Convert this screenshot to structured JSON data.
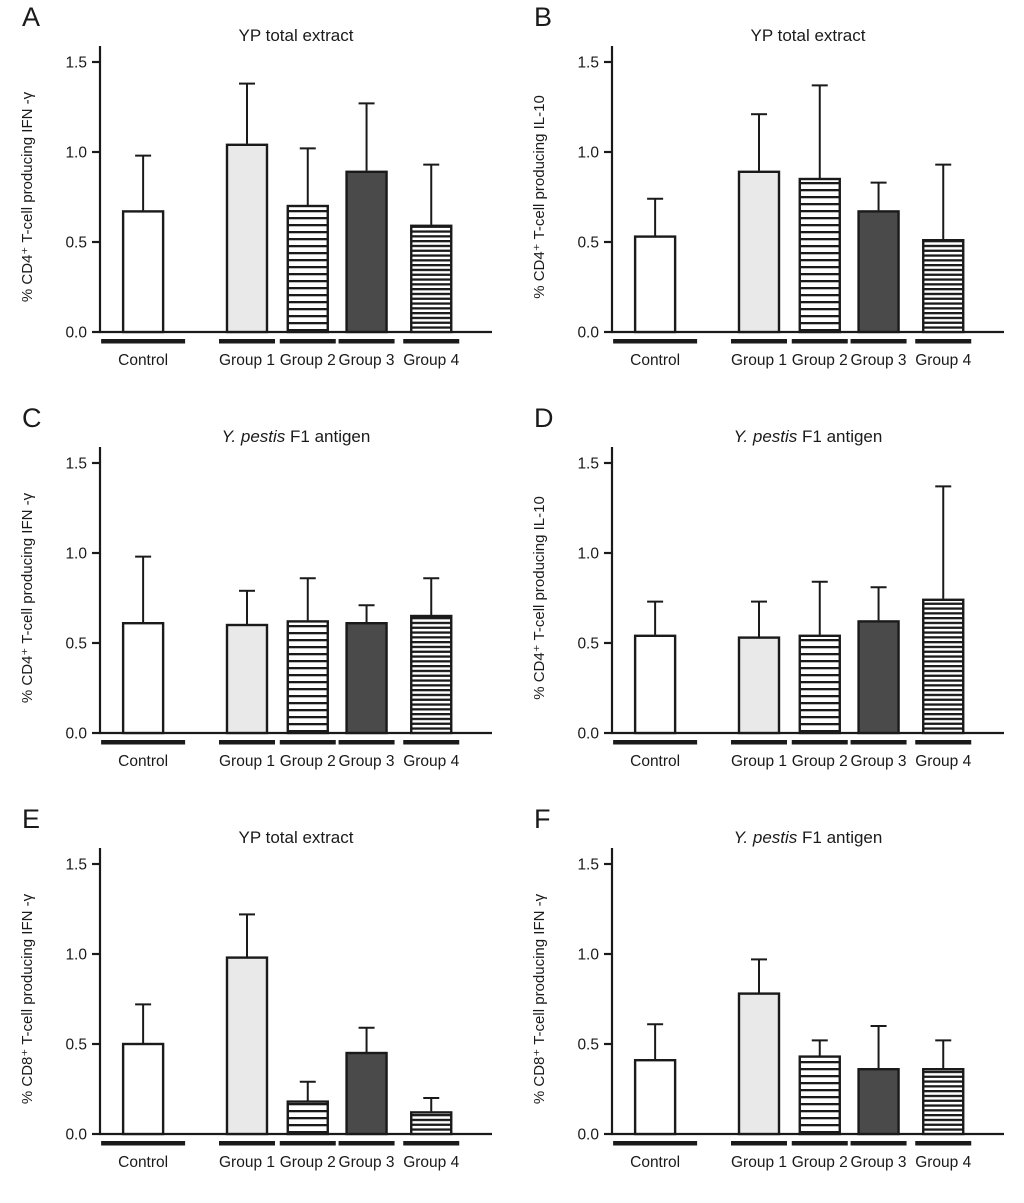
{
  "figure": {
    "bar_styles": [
      "white",
      "light-gray",
      "h-stripe",
      "dark-gray",
      "h-stripe-dense"
    ],
    "colors": {
      "axis": "#1a1a1a",
      "light_gray": "#e9e9e9",
      "dark_gray": "#4a4a4a",
      "stripe_ink": "#1a1a1a",
      "background": "#ffffff"
    }
  },
  "chart_data": [
    {
      "panel": "A",
      "type": "bar",
      "title": "YP total extract",
      "title_italic": "",
      "title_rest": "YP total extract",
      "ylabel": "% CD4⁺ T-cell producing IFN -γ",
      "categories": [
        "Control",
        "Group 1",
        "Group 2",
        "Group 3",
        "Group 4"
      ],
      "values": [
        0.67,
        1.04,
        0.7,
        0.89,
        0.59
      ],
      "errors": [
        0.31,
        0.34,
        0.32,
        0.38,
        0.34
      ],
      "yticks": [
        0,
        0.5,
        1,
        1.5
      ],
      "ylim": [
        0,
        1.5
      ],
      "grid": false,
      "legend": "none"
    },
    {
      "panel": "B",
      "type": "bar",
      "title": "YP total extract",
      "title_italic": "",
      "title_rest": "YP total extract",
      "ylabel": "% CD4⁺ T-cell producing IL-10",
      "categories": [
        "Control",
        "Group 1",
        "Group 2",
        "Group 3",
        "Group 4"
      ],
      "values": [
        0.53,
        0.89,
        0.85,
        0.67,
        0.51
      ],
      "errors": [
        0.21,
        0.32,
        0.52,
        0.16,
        0.42
      ],
      "yticks": [
        0,
        0.5,
        1,
        1.5
      ],
      "ylim": [
        0,
        1.5
      ],
      "grid": false,
      "legend": "none"
    },
    {
      "panel": "C",
      "type": "bar",
      "title": "Y. pestis F1 antigen",
      "title_italic": "Y. pestis",
      "title_rest": " F1 antigen",
      "ylabel": "% CD4⁺ T-cell producing IFN -γ",
      "categories": [
        "Control",
        "Group 1",
        "Group 2",
        "Group 3",
        "Group 4"
      ],
      "values": [
        0.61,
        0.6,
        0.62,
        0.61,
        0.65
      ],
      "errors": [
        0.37,
        0.19,
        0.24,
        0.1,
        0.21
      ],
      "yticks": [
        0,
        0.5,
        1,
        1.5
      ],
      "ylim": [
        0,
        1.5
      ],
      "grid": false,
      "legend": "none"
    },
    {
      "panel": "D",
      "type": "bar",
      "title": "Y. pestis F1 antigen",
      "title_italic": "Y. pestis",
      "title_rest": " F1 antigen",
      "ylabel": "% CD4⁺ T-cell producing IL-10",
      "categories": [
        "Control",
        "Group 1",
        "Group 2",
        "Group 3",
        "Group 4"
      ],
      "values": [
        0.54,
        0.53,
        0.54,
        0.62,
        0.74
      ],
      "errors": [
        0.19,
        0.2,
        0.3,
        0.19,
        0.63
      ],
      "yticks": [
        0,
        0.5,
        1,
        1.5
      ],
      "ylim": [
        0,
        1.5
      ],
      "grid": false,
      "legend": "none"
    },
    {
      "panel": "E",
      "type": "bar",
      "title": "YP total extract",
      "title_italic": "",
      "title_rest": "YP total extract",
      "ylabel": "% CD8⁺ T-cell producing IFN -γ",
      "categories": [
        "Control",
        "Group 1",
        "Group 2",
        "Group 3",
        "Group 4"
      ],
      "values": [
        0.5,
        0.98,
        0.18,
        0.45,
        0.12
      ],
      "errors": [
        0.22,
        0.24,
        0.11,
        0.14,
        0.08
      ],
      "yticks": [
        0,
        0.5,
        1,
        1.5
      ],
      "ylim": [
        0,
        1.5
      ],
      "grid": false,
      "legend": "none"
    },
    {
      "panel": "F",
      "type": "bar",
      "title": "Y. pestis F1 antigen",
      "title_italic": "Y. pestis",
      "title_rest": " F1 antigen",
      "ylabel": "% CD8⁺ T-cell producing IFN -γ",
      "categories": [
        "Control",
        "Group 1",
        "Group 2",
        "Group 3",
        "Group 4"
      ],
      "values": [
        0.41,
        0.78,
        0.43,
        0.36,
        0.36
      ],
      "errors": [
        0.2,
        0.19,
        0.09,
        0.24,
        0.16
      ],
      "yticks": [
        0,
        0.5,
        1,
        1.5
      ],
      "ylim": [
        0,
        1.5
      ],
      "grid": false,
      "legend": "none"
    }
  ]
}
